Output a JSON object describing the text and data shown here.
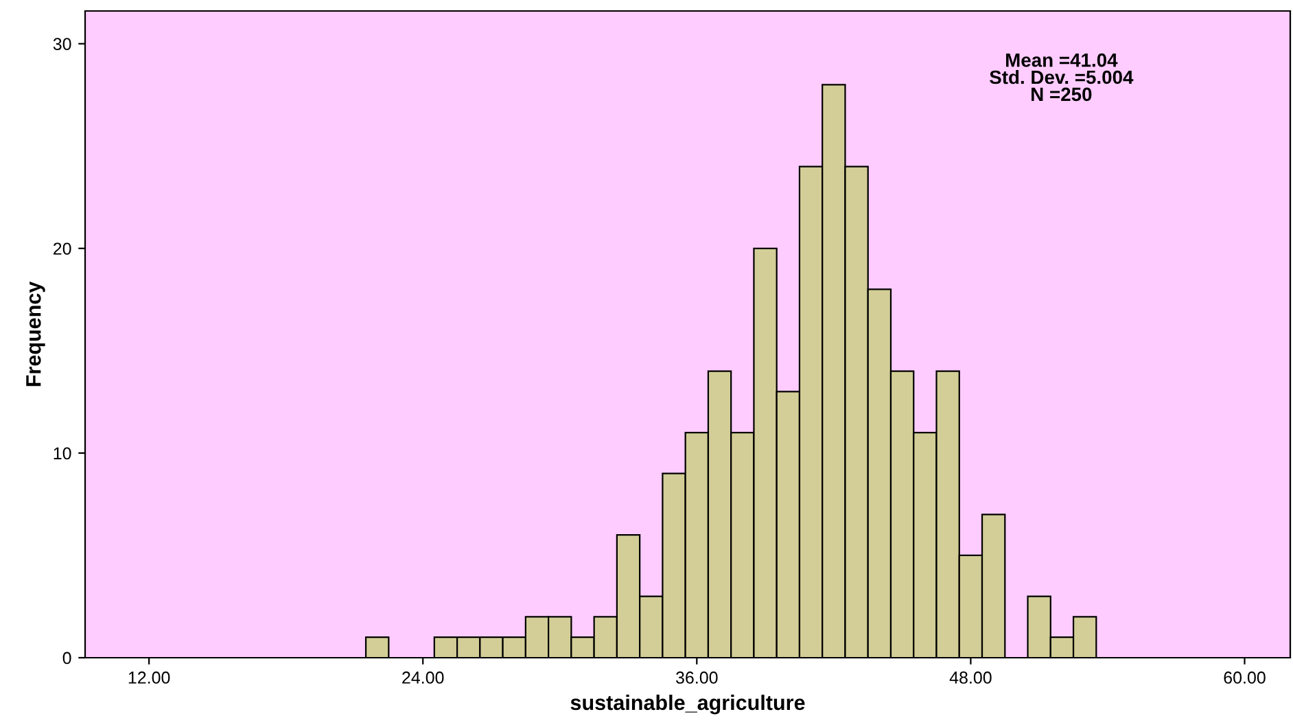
{
  "chart_data": {
    "type": "histogram",
    "xlabel": "sustainable_agriculture",
    "ylabel": "Frequency",
    "bins": [
      21.5,
      22.5,
      23.5,
      24.5,
      25.5,
      26.5,
      27.5,
      28.5,
      29.5,
      30.5,
      31.5,
      32.5,
      33.5,
      34.5,
      35.5,
      36.5,
      37.5,
      38.5,
      39.5,
      40.5,
      41.5,
      42.5,
      43.5,
      44.5,
      45.5,
      46.5,
      47.5,
      48.5,
      49.5,
      50.5,
      51.5,
      52.5,
      53.5
    ],
    "values": [
      1,
      0,
      0,
      1,
      1,
      1,
      1,
      2,
      2,
      1,
      2,
      6,
      3,
      9,
      11,
      14,
      11,
      20,
      13,
      24,
      28,
      24,
      18,
      14,
      11,
      14,
      5,
      7,
      0,
      3,
      1,
      2
    ],
    "color": "#d3ce97",
    "xlim": [
      9.2,
      62
    ],
    "ylim": [
      0,
      31.6
    ],
    "xticks": [
      {
        "value": 12,
        "label": "12.00"
      },
      {
        "value": 24,
        "label": "24.00"
      },
      {
        "value": 36,
        "label": "36.00"
      },
      {
        "value": 48,
        "label": "48.00"
      },
      {
        "value": 60,
        "label": "60.00"
      }
    ],
    "yticks": [
      0,
      10,
      20,
      30
    ],
    "grid": false,
    "annotations": [
      "Mean =41.04\nStd. Dev. =5.004\nN =250"
    ]
  }
}
